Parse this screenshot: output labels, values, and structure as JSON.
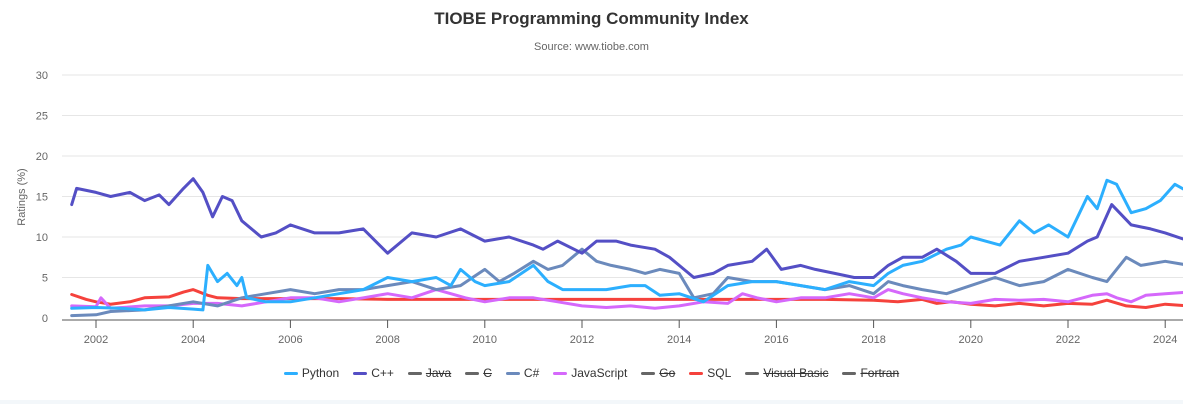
{
  "chart_data": {
    "type": "line",
    "title": "TIOBE Programming Community Index",
    "subtitle": "Source: www.tiobe.com",
    "xlabel": "",
    "ylabel": "Ratings (%)",
    "ylim": [
      0,
      30
    ],
    "xlim": [
      2001.3,
      2024.5
    ],
    "yticks": [
      0,
      5,
      10,
      15,
      20,
      25,
      30
    ],
    "xticks": [
      2002,
      2004,
      2006,
      2008,
      2010,
      2012,
      2014,
      2016,
      2018,
      2020,
      2022,
      2024
    ],
    "grid": true,
    "legend_position": "bottom",
    "series": [
      {
        "name": "Python",
        "color": "#2caffe",
        "visible": true,
        "points": [
          [
            2001.5,
            1.2
          ],
          [
            2002,
            1.3
          ],
          [
            2002.5,
            1.2
          ],
          [
            2003,
            1.0
          ],
          [
            2003.5,
            1.3
          ],
          [
            2004,
            1.1
          ],
          [
            2004.2,
            1.0
          ],
          [
            2004.3,
            6.5
          ],
          [
            2004.5,
            4.5
          ],
          [
            2004.7,
            5.5
          ],
          [
            2004.9,
            4.0
          ],
          [
            2005.0,
            5.0
          ],
          [
            2005.1,
            2.5
          ],
          [
            2005.5,
            2.0
          ],
          [
            2006,
            2.0
          ],
          [
            2006.5,
            2.5
          ],
          [
            2007,
            3.0
          ],
          [
            2007.5,
            3.5
          ],
          [
            2008,
            5.0
          ],
          [
            2008.5,
            4.5
          ],
          [
            2009,
            5.0
          ],
          [
            2009.3,
            4.0
          ],
          [
            2009.5,
            6.0
          ],
          [
            2009.8,
            4.5
          ],
          [
            2010,
            4.0
          ],
          [
            2010.5,
            4.5
          ],
          [
            2011,
            6.5
          ],
          [
            2011.3,
            4.5
          ],
          [
            2011.6,
            3.5
          ],
          [
            2012,
            3.5
          ],
          [
            2012.5,
            3.5
          ],
          [
            2013,
            4.0
          ],
          [
            2013.3,
            4.0
          ],
          [
            2013.6,
            2.8
          ],
          [
            2014,
            3.0
          ],
          [
            2014.5,
            2.0
          ],
          [
            2015,
            4.0
          ],
          [
            2015.5,
            4.5
          ],
          [
            2016,
            4.5
          ],
          [
            2016.5,
            4.0
          ],
          [
            2017,
            3.5
          ],
          [
            2017.5,
            4.5
          ],
          [
            2018,
            4.0
          ],
          [
            2018.3,
            5.5
          ],
          [
            2018.6,
            6.5
          ],
          [
            2019,
            7.0
          ],
          [
            2019.5,
            8.5
          ],
          [
            2019.8,
            9.0
          ],
          [
            2020,
            10.0
          ],
          [
            2020.3,
            9.5
          ],
          [
            2020.6,
            9.0
          ],
          [
            2021,
            12.0
          ],
          [
            2021.3,
            10.5
          ],
          [
            2021.6,
            11.5
          ],
          [
            2022,
            10.0
          ],
          [
            2022.2,
            12.5
          ],
          [
            2022.4,
            15.0
          ],
          [
            2022.6,
            13.5
          ],
          [
            2022.8,
            17.0
          ],
          [
            2023.0,
            16.5
          ],
          [
            2023.3,
            13.0
          ],
          [
            2023.6,
            13.5
          ],
          [
            2023.9,
            14.5
          ],
          [
            2024.2,
            16.5
          ],
          [
            2024.5,
            15.5
          ]
        ]
      },
      {
        "name": "C++",
        "color": "#544fc5",
        "visible": true,
        "points": [
          [
            2001.5,
            14.0
          ],
          [
            2001.6,
            16.0
          ],
          [
            2002,
            15.5
          ],
          [
            2002.3,
            15.0
          ],
          [
            2002.7,
            15.5
          ],
          [
            2003,
            14.5
          ],
          [
            2003.3,
            15.2
          ],
          [
            2003.5,
            14.0
          ],
          [
            2003.8,
            16.0
          ],
          [
            2004,
            17.2
          ],
          [
            2004.2,
            15.5
          ],
          [
            2004.4,
            12.5
          ],
          [
            2004.6,
            15.0
          ],
          [
            2004.8,
            14.5
          ],
          [
            2005,
            12.0
          ],
          [
            2005.4,
            10.0
          ],
          [
            2005.7,
            10.5
          ],
          [
            2006,
            11.5
          ],
          [
            2006.5,
            10.5
          ],
          [
            2007,
            10.5
          ],
          [
            2007.5,
            11.0
          ],
          [
            2008,
            8.0
          ],
          [
            2008.5,
            10.5
          ],
          [
            2009,
            10.0
          ],
          [
            2009.5,
            11.0
          ],
          [
            2010,
            9.5
          ],
          [
            2010.5,
            10.0
          ],
          [
            2011,
            9.0
          ],
          [
            2011.2,
            8.5
          ],
          [
            2011.5,
            9.5
          ],
          [
            2012,
            8.0
          ],
          [
            2012.3,
            9.5
          ],
          [
            2012.7,
            9.5
          ],
          [
            2013,
            9.0
          ],
          [
            2013.5,
            8.5
          ],
          [
            2013.8,
            7.5
          ],
          [
            2014,
            6.5
          ],
          [
            2014.3,
            5.0
          ],
          [
            2014.7,
            5.5
          ],
          [
            2015,
            6.5
          ],
          [
            2015.5,
            7.0
          ],
          [
            2015.8,
            8.5
          ],
          [
            2016.1,
            6.0
          ],
          [
            2016.5,
            6.5
          ],
          [
            2016.8,
            6.0
          ],
          [
            2017.2,
            5.5
          ],
          [
            2017.6,
            5.0
          ],
          [
            2018,
            5.0
          ],
          [
            2018.3,
            6.5
          ],
          [
            2018.6,
            7.5
          ],
          [
            2019,
            7.5
          ],
          [
            2019.3,
            8.5
          ],
          [
            2019.7,
            7.0
          ],
          [
            2020,
            5.5
          ],
          [
            2020.5,
            5.5
          ],
          [
            2021,
            7.0
          ],
          [
            2021.5,
            7.5
          ],
          [
            2022,
            8.0
          ],
          [
            2022.4,
            9.5
          ],
          [
            2022.6,
            10.0
          ],
          [
            2022.9,
            14.0
          ],
          [
            2023.3,
            11.5
          ],
          [
            2023.7,
            11.0
          ],
          [
            2024,
            10.5
          ],
          [
            2024.5,
            9.5
          ]
        ]
      },
      {
        "name": "Java",
        "color": "#666666",
        "visible": false,
        "points": []
      },
      {
        "name": "C",
        "color": "#666666",
        "visible": false,
        "points": []
      },
      {
        "name": "C#",
        "color": "#6b8abc",
        "visible": true,
        "points": [
          [
            2001.5,
            0.3
          ],
          [
            2002,
            0.4
          ],
          [
            2002.3,
            0.8
          ],
          [
            2003,
            1.0
          ],
          [
            2003.5,
            1.5
          ],
          [
            2004,
            2.0
          ],
          [
            2004.5,
            1.5
          ],
          [
            2005,
            2.5
          ],
          [
            2005.5,
            3.0
          ],
          [
            2006,
            3.5
          ],
          [
            2006.5,
            3.0
          ],
          [
            2007,
            3.5
          ],
          [
            2007.5,
            3.5
          ],
          [
            2008,
            4.0
          ],
          [
            2008.5,
            4.5
          ],
          [
            2009,
            3.5
          ],
          [
            2009.5,
            4.0
          ],
          [
            2010,
            6.0
          ],
          [
            2010.3,
            4.5
          ],
          [
            2010.6,
            5.5
          ],
          [
            2011,
            7.0
          ],
          [
            2011.3,
            6.0
          ],
          [
            2011.6,
            6.5
          ],
          [
            2012,
            8.5
          ],
          [
            2012.3,
            7.0
          ],
          [
            2012.6,
            6.5
          ],
          [
            2013,
            6.0
          ],
          [
            2013.3,
            5.5
          ],
          [
            2013.6,
            6.0
          ],
          [
            2014,
            5.5
          ],
          [
            2014.3,
            2.5
          ],
          [
            2014.7,
            3.0
          ],
          [
            2015,
            5.0
          ],
          [
            2015.5,
            4.5
          ],
          [
            2016,
            4.5
          ],
          [
            2016.5,
            4.0
          ],
          [
            2017,
            3.5
          ],
          [
            2017.5,
            4.0
          ],
          [
            2018,
            3.0
          ],
          [
            2018.3,
            4.5
          ],
          [
            2018.6,
            4.0
          ],
          [
            2019,
            3.5
          ],
          [
            2019.5,
            3.0
          ],
          [
            2020,
            4.0
          ],
          [
            2020.5,
            5.0
          ],
          [
            2021,
            4.0
          ],
          [
            2021.5,
            4.5
          ],
          [
            2022,
            6.0
          ],
          [
            2022.5,
            5.0
          ],
          [
            2022.8,
            4.5
          ],
          [
            2023.2,
            7.5
          ],
          [
            2023.5,
            6.5
          ],
          [
            2024,
            7.0
          ],
          [
            2024.5,
            6.5
          ]
        ]
      },
      {
        "name": "JavaScript",
        "color": "#d568fb",
        "visible": true,
        "points": [
          [
            2001.5,
            1.5
          ],
          [
            2002,
            1.4
          ],
          [
            2002.1,
            2.5
          ],
          [
            2002.3,
            1.2
          ],
          [
            2003,
            1.5
          ],
          [
            2003.5,
            1.5
          ],
          [
            2004,
            1.8
          ],
          [
            2004.5,
            1.8
          ],
          [
            2005,
            1.5
          ],
          [
            2005.5,
            2.0
          ],
          [
            2006,
            2.5
          ],
          [
            2006.5,
            2.5
          ],
          [
            2007,
            2.0
          ],
          [
            2007.5,
            2.5
          ],
          [
            2008,
            3.0
          ],
          [
            2008.5,
            2.5
          ],
          [
            2009,
            3.5
          ],
          [
            2009.3,
            3.0
          ],
          [
            2009.6,
            2.5
          ],
          [
            2010,
            2.0
          ],
          [
            2010.5,
            2.5
          ],
          [
            2011,
            2.5
          ],
          [
            2011.5,
            2.0
          ],
          [
            2012,
            1.5
          ],
          [
            2012.5,
            1.3
          ],
          [
            2013,
            1.5
          ],
          [
            2013.5,
            1.2
          ],
          [
            2014,
            1.5
          ],
          [
            2014.5,
            2.0
          ],
          [
            2015,
            1.8
          ],
          [
            2015.3,
            3.0
          ],
          [
            2015.6,
            2.5
          ],
          [
            2016,
            2.0
          ],
          [
            2016.5,
            2.5
          ],
          [
            2017,
            2.5
          ],
          [
            2017.5,
            3.0
          ],
          [
            2018,
            2.5
          ],
          [
            2018.3,
            3.5
          ],
          [
            2018.6,
            3.0
          ],
          [
            2019,
            2.5
          ],
          [
            2019.5,
            2.0
          ],
          [
            2020,
            1.8
          ],
          [
            2020.5,
            2.3
          ],
          [
            2021,
            2.2
          ],
          [
            2021.5,
            2.3
          ],
          [
            2022,
            2.0
          ],
          [
            2022.5,
            2.8
          ],
          [
            2022.8,
            3.0
          ],
          [
            2023,
            2.5
          ],
          [
            2023.3,
            2.0
          ],
          [
            2023.6,
            2.8
          ],
          [
            2024,
            3.0
          ],
          [
            2024.5,
            3.2
          ]
        ]
      },
      {
        "name": "Go",
        "color": "#666666",
        "visible": false,
        "points": []
      },
      {
        "name": "SQL",
        "color": "#fe6a35",
        "visible": true,
        "draw_color": "#f5423c",
        "points": [
          [
            2001.5,
            2.9
          ],
          [
            2001.8,
            2.3
          ],
          [
            2002,
            2.0
          ],
          [
            2002.3,
            1.7
          ],
          [
            2002.7,
            2.0
          ],
          [
            2003,
            2.5
          ],
          [
            2003.5,
            2.6
          ],
          [
            2003.8,
            3.2
          ],
          [
            2004,
            3.5
          ],
          [
            2004.3,
            2.8
          ],
          [
            2004.5,
            2.5
          ],
          [
            2005,
            2.4
          ],
          [
            2006,
            2.4
          ],
          [
            2007,
            2.4
          ],
          [
            2008,
            2.3
          ],
          [
            2009,
            2.3
          ],
          [
            2010,
            2.3
          ],
          [
            2011,
            2.3
          ],
          [
            2012,
            2.3
          ],
          [
            2013,
            2.3
          ],
          [
            2014,
            2.3
          ],
          [
            2015,
            2.3
          ],
          [
            2016,
            2.3
          ],
          [
            2017,
            2.3
          ],
          [
            2018,
            2.2
          ],
          [
            2018.5,
            2.0
          ],
          [
            2019,
            2.3
          ],
          [
            2019.3,
            1.8
          ],
          [
            2019.6,
            2.0
          ],
          [
            2020,
            1.7
          ],
          [
            2020.5,
            1.5
          ],
          [
            2021,
            1.8
          ],
          [
            2021.5,
            1.5
          ],
          [
            2022,
            1.8
          ],
          [
            2022.5,
            1.7
          ],
          [
            2022.8,
            2.2
          ],
          [
            2023.2,
            1.5
          ],
          [
            2023.6,
            1.3
          ],
          [
            2024,
            1.7
          ],
          [
            2024.5,
            1.5
          ]
        ]
      },
      {
        "name": "Visual Basic",
        "color": "#666666",
        "visible": false,
        "points": []
      },
      {
        "name": "Fortran",
        "color": "#666666",
        "visible": false,
        "points": []
      }
    ]
  }
}
